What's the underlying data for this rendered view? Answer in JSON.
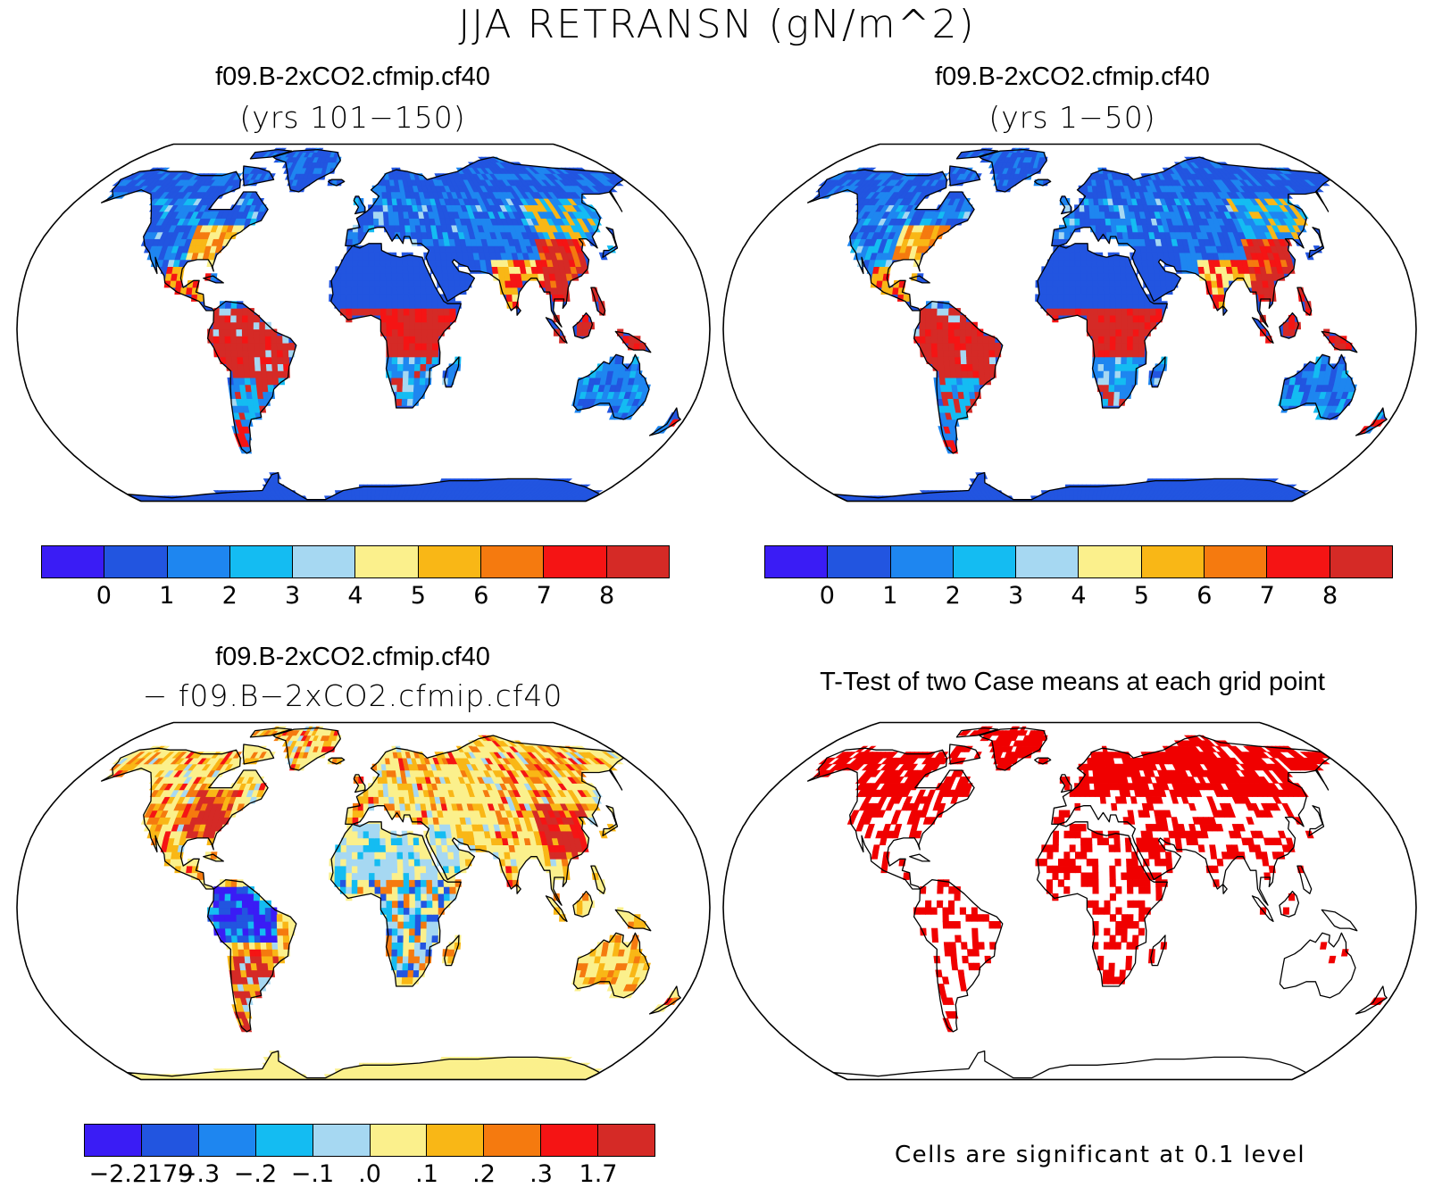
{
  "figure": {
    "title": "JJA RETRANSN (gN/m^2)"
  },
  "panels": [
    {
      "title": "f09.B-2xCO2.cfmip.cf40",
      "subtitle": "(yrs 101−150)"
    },
    {
      "title": "f09.B-2xCO2.cfmip.cf40",
      "subtitle": "(yrs 1−50)"
    },
    {
      "title": "f09.B-2xCO2.cfmip.cf40",
      "subtitle": "− f09.B−2xCO2.cfmip.cf40"
    },
    {
      "title": "T-Test of two Case means at each grid point",
      "subtitle": ""
    }
  ],
  "colorbars": {
    "absolute": {
      "colors": [
        "#3a1cf5",
        "#2255e0",
        "#1e86f0",
        "#14bcf2",
        "#a6d8f2",
        "#fbf08c",
        "#f9b716",
        "#f57a0f",
        "#f51414",
        "#d52a26"
      ],
      "labels": [
        "0",
        "1",
        "2",
        "3",
        "4",
        "5",
        "6",
        "7",
        "8"
      ]
    },
    "difference": {
      "colors": [
        "#3a1cf5",
        "#2255e0",
        "#1e86f0",
        "#14bcf2",
        "#a6d8f2",
        "#fbf08c",
        "#f9b716",
        "#f57a0f",
        "#f51414",
        "#d52a26"
      ],
      "labels": [
        "−2.2179",
        "−.3",
        "−.2",
        "−.1",
        ".0",
        ".1",
        ".2",
        ".3",
        "1.7"
      ]
    }
  },
  "significance": {
    "note": "Cells are significant at 0.1 level",
    "color": "#f00000"
  }
}
